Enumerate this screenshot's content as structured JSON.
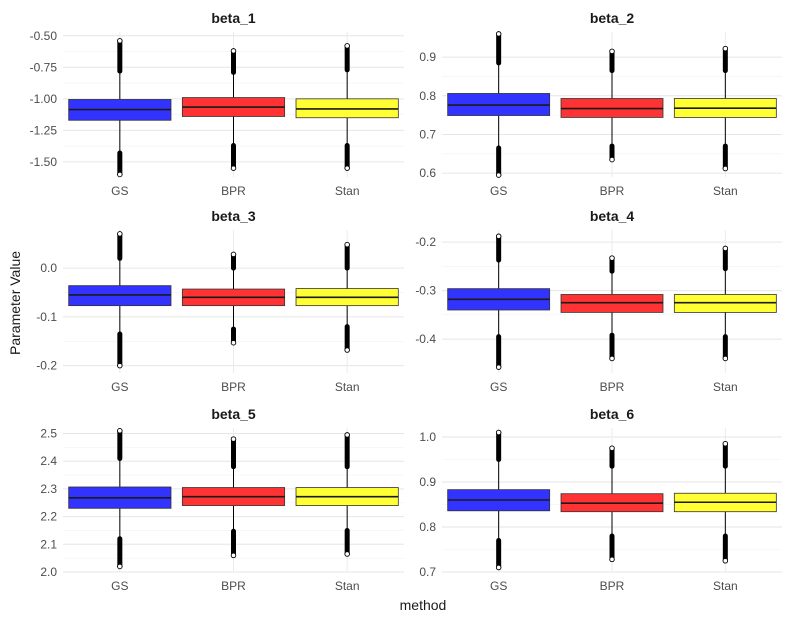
{
  "chart_data": {
    "type": "boxplot",
    "xlabel": "method",
    "ylabel": "Parameter Value",
    "categories": [
      "GS",
      "BPR",
      "Stan"
    ],
    "colors": {
      "GS": "#3333ff",
      "BPR": "#ff3333",
      "Stan": "#ffff33"
    },
    "grid": true,
    "panels": [
      {
        "title": "beta_1",
        "yticks": [
          -1.5,
          -1.25,
          -1.0,
          -0.75,
          -0.5
        ],
        "ytick_labels": [
          "-1.50",
          "-1.25",
          "-1.00",
          "-0.75",
          "-0.50"
        ],
        "ylim": [
          -1.62,
          -0.47
        ],
        "boxes": [
          {
            "method": "GS",
            "q1": -1.17,
            "median": -1.085,
            "q3": -1.005,
            "whisker_low": -1.43,
            "whisker_high": -0.78,
            "out_low": [
              -1.6,
              -1.43
            ],
            "out_high": [
              -0.78,
              -0.54
            ]
          },
          {
            "method": "BPR",
            "q1": -1.14,
            "median": -1.065,
            "q3": -0.99,
            "whisker_low": -1.37,
            "whisker_high": -0.79,
            "out_low": [
              -1.55,
              -1.37
            ],
            "out_high": [
              -0.79,
              -0.62
            ]
          },
          {
            "method": "Stan",
            "q1": -1.15,
            "median": -1.08,
            "q3": -1.0,
            "whisker_low": -1.37,
            "whisker_high": -0.77,
            "out_low": [
              -1.55,
              -1.37
            ],
            "out_high": [
              -0.77,
              -0.58
            ]
          }
        ]
      },
      {
        "title": "beta_2",
        "yticks": [
          0.6,
          0.7,
          0.8,
          0.9
        ],
        "ytick_labels": [
          "0.6",
          "0.7",
          "0.8",
          "0.9"
        ],
        "ylim": [
          0.59,
          0.965
        ],
        "boxes": [
          {
            "method": "GS",
            "q1": 0.749,
            "median": 0.776,
            "q3": 0.806,
            "whisker_low": 0.665,
            "whisker_high": 0.885,
            "out_low": [
              0.595,
              0.665
            ],
            "out_high": [
              0.885,
              0.96
            ]
          },
          {
            "method": "BPR",
            "q1": 0.744,
            "median": 0.767,
            "q3": 0.793,
            "whisker_low": 0.67,
            "whisker_high": 0.865,
            "out_low": [
              0.635,
              0.67
            ],
            "out_high": [
              0.865,
              0.915
            ]
          },
          {
            "method": "Stan",
            "q1": 0.744,
            "median": 0.768,
            "q3": 0.793,
            "whisker_low": 0.67,
            "whisker_high": 0.865,
            "out_low": [
              0.612,
              0.67
            ],
            "out_high": [
              0.865,
              0.922
            ]
          }
        ]
      },
      {
        "title": "beta_3",
        "yticks": [
          -0.2,
          -0.1,
          0.0
        ],
        "ytick_labels": [
          "-0.2",
          "-0.1",
          "0.0"
        ],
        "ylim": [
          -0.215,
          0.078
        ],
        "boxes": [
          {
            "method": "GS",
            "q1": -0.077,
            "median": -0.055,
            "q3": -0.036,
            "whisker_low": -0.135,
            "whisker_high": 0.02,
            "out_low": [
              -0.2,
              -0.135
            ],
            "out_high": [
              0.02,
              0.07
            ]
          },
          {
            "method": "BPR",
            "q1": -0.077,
            "median": -0.06,
            "q3": -0.043,
            "whisker_low": -0.125,
            "whisker_high": 0.0,
            "out_low": [
              -0.153,
              -0.125
            ],
            "out_high": [
              0.0,
              0.028
            ]
          },
          {
            "method": "Stan",
            "q1": -0.077,
            "median": -0.06,
            "q3": -0.042,
            "whisker_low": -0.12,
            "whisker_high": 0.0,
            "out_low": [
              -0.168,
              -0.12
            ],
            "out_high": [
              0.0,
              0.048
            ]
          }
        ]
      },
      {
        "title": "beta_4",
        "yticks": [
          -0.4,
          -0.3,
          -0.2
        ],
        "ytick_labels": [
          "-0.4",
          "-0.3",
          "-0.2"
        ],
        "ylim": [
          -0.47,
          -0.175
        ],
        "boxes": [
          {
            "method": "GS",
            "q1": -0.34,
            "median": -0.318,
            "q3": -0.296,
            "whisker_low": -0.395,
            "whisker_high": -0.237,
            "out_low": [
              -0.458,
              -0.395
            ],
            "out_high": [
              -0.237,
              -0.188
            ]
          },
          {
            "method": "BPR",
            "q1": -0.345,
            "median": -0.325,
            "q3": -0.308,
            "whisker_low": -0.392,
            "whisker_high": -0.26,
            "out_low": [
              -0.44,
              -0.392
            ],
            "out_high": [
              -0.26,
              -0.233
            ]
          },
          {
            "method": "Stan",
            "q1": -0.345,
            "median": -0.325,
            "q3": -0.308,
            "whisker_low": -0.395,
            "whisker_high": -0.255,
            "out_low": [
              -0.44,
              -0.395
            ],
            "out_high": [
              -0.255,
              -0.213
            ]
          }
        ]
      },
      {
        "title": "beta_5",
        "yticks": [
          2.0,
          2.1,
          2.2,
          2.3,
          2.4,
          2.5
        ],
        "ytick_labels": [
          "2.0",
          "2.1",
          "2.2",
          "2.3",
          "2.4",
          "2.5"
        ],
        "ylim": [
          2.0,
          2.52
        ],
        "boxes": [
          {
            "method": "GS",
            "q1": 2.23,
            "median": 2.268,
            "q3": 2.307,
            "whisker_low": 2.12,
            "whisker_high": 2.41,
            "out_low": [
              2.02,
              2.12
            ],
            "out_high": [
              2.41,
              2.51
            ]
          },
          {
            "method": "BPR",
            "q1": 2.24,
            "median": 2.272,
            "q3": 2.305,
            "whisker_low": 2.147,
            "whisker_high": 2.38,
            "out_low": [
              2.06,
              2.147
            ],
            "out_high": [
              2.38,
              2.48
            ]
          },
          {
            "method": "Stan",
            "q1": 2.24,
            "median": 2.272,
            "q3": 2.305,
            "whisker_low": 2.15,
            "whisker_high": 2.38,
            "out_low": [
              2.065,
              2.15
            ],
            "out_high": [
              2.38,
              2.495
            ]
          }
        ]
      },
      {
        "title": "beta_6",
        "yticks": [
          0.7,
          0.8,
          0.9,
          1.0
        ],
        "ytick_labels": [
          "0.7",
          "0.8",
          "0.9",
          "1.0"
        ],
        "ylim": [
          0.7,
          1.02
        ],
        "boxes": [
          {
            "method": "GS",
            "q1": 0.836,
            "median": 0.86,
            "q3": 0.883,
            "whisker_low": 0.77,
            "whisker_high": 0.95,
            "out_low": [
              0.71,
              0.77
            ],
            "out_high": [
              0.95,
              1.01
            ]
          },
          {
            "method": "BPR",
            "q1": 0.834,
            "median": 0.853,
            "q3": 0.874,
            "whisker_low": 0.78,
            "whisker_high": 0.935,
            "out_low": [
              0.728,
              0.78
            ],
            "out_high": [
              0.935,
              0.975
            ]
          },
          {
            "method": "Stan",
            "q1": 0.834,
            "median": 0.855,
            "q3": 0.875,
            "whisker_low": 0.78,
            "whisker_high": 0.935,
            "out_low": [
              0.725,
              0.78
            ],
            "out_high": [
              0.935,
              0.985
            ]
          }
        ]
      }
    ]
  }
}
